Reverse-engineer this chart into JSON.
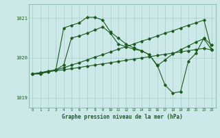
{
  "title": "Graphe pression niveau de la mer (hPa)",
  "bg_color": "#cce8e8",
  "grid_color": "#aacccc",
  "line_color": "#1a5c1a",
  "xlim": [
    -0.5,
    23.5
  ],
  "ylim": [
    1018.75,
    1021.35
  ],
  "yticks": [
    1019,
    1020,
    1021
  ],
  "xticks": [
    0,
    1,
    2,
    3,
    4,
    5,
    6,
    7,
    8,
    9,
    10,
    11,
    12,
    13,
    14,
    15,
    16,
    17,
    18,
    19,
    20,
    21,
    22,
    23
  ],
  "s1": [
    1019.6,
    1019.6,
    1019.65,
    1019.7,
    1020.75,
    1020.82,
    1020.88,
    1021.02,
    1021.02,
    1020.95,
    1020.65,
    1020.5,
    1020.35,
    1020.25,
    1020.18,
    1020.08,
    1019.82,
    1019.32,
    1019.12,
    1019.15,
    1019.92,
    1020.12,
    1020.5,
    1020.32
  ],
  "s2": [
    1019.6,
    1019.6,
    1019.65,
    1019.7,
    1019.82,
    1020.5,
    1020.55,
    1020.62,
    1020.7,
    1020.78,
    1020.62,
    1020.35,
    1020.28,
    1020.22,
    1020.18,
    1020.08,
    1019.8,
    1019.95,
    1020.1,
    1020.2,
    1020.3,
    1020.4,
    1020.48,
    1020.2
  ],
  "s3": [
    1019.6,
    1019.63,
    1019.67,
    1019.7,
    1019.75,
    1019.82,
    1019.88,
    1019.95,
    1020.02,
    1020.08,
    1020.15,
    1020.22,
    1020.28,
    1020.35,
    1020.42,
    1020.48,
    1020.55,
    1020.62,
    1020.68,
    1020.75,
    1020.82,
    1020.88,
    1020.95,
    1020.2
  ],
  "s4": [
    1019.6,
    1019.62,
    1019.65,
    1019.68,
    1019.7,
    1019.73,
    1019.76,
    1019.79,
    1019.82,
    1019.85,
    1019.88,
    1019.91,
    1019.94,
    1019.97,
    1020.0,
    1020.03,
    1020.06,
    1020.09,
    1020.12,
    1020.15,
    1020.18,
    1020.21,
    1020.24,
    1020.2
  ]
}
